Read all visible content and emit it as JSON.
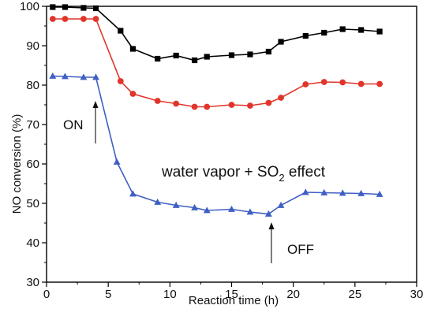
{
  "chart_data": {
    "type": "line",
    "title": "",
    "xlabel": "Reaction time (h)",
    "ylabel": "NO conversion (%)",
    "xlim": [
      0,
      30
    ],
    "ylim": [
      30,
      100
    ],
    "xticks": [
      0,
      5,
      10,
      15,
      20,
      25,
      30
    ],
    "yticks": [
      30,
      40,
      50,
      60,
      70,
      80,
      90,
      100
    ],
    "grid": false,
    "legend": "none",
    "series": [
      {
        "color": "#000000",
        "marker": "square",
        "x": [
          0.5,
          1.5,
          3,
          4,
          6,
          7,
          9,
          10.5,
          12,
          13,
          15,
          16.5,
          18,
          19,
          21,
          22.5,
          24,
          25.5,
          27
        ],
        "y": [
          99.8,
          99.8,
          99.6,
          99.5,
          93.8,
          89.2,
          86.7,
          87.5,
          86.3,
          87.2,
          87.6,
          87.8,
          88.5,
          91.0,
          92.5,
          93.3,
          94.2,
          94.0,
          93.6
        ]
      },
      {
        "color": "#e0352b",
        "marker": "circle",
        "x": [
          0.5,
          1.5,
          3,
          4,
          6,
          7,
          9,
          10.5,
          12,
          13,
          15,
          16.5,
          18,
          19,
          21,
          22.5,
          24,
          25.5,
          27
        ],
        "y": [
          96.8,
          96.8,
          96.8,
          96.8,
          81.0,
          77.8,
          76.0,
          75.3,
          74.5,
          74.5,
          75.0,
          74.8,
          75.5,
          76.8,
          80.2,
          80.8,
          80.7,
          80.3,
          80.3
        ]
      },
      {
        "color": "#3f5fc4",
        "marker": "triangle",
        "x": [
          0.5,
          1.5,
          3,
          4,
          5.7,
          7,
          9,
          10.5,
          12,
          13,
          15,
          16.5,
          18,
          19,
          21,
          22.5,
          24,
          25.5,
          27
        ],
        "y": [
          82.3,
          82.2,
          82.0,
          82.0,
          60.5,
          52.4,
          50.3,
          49.5,
          48.9,
          48.2,
          48.5,
          47.8,
          47.3,
          49.5,
          52.8,
          52.7,
          52.6,
          52.5,
          52.3
        ]
      }
    ],
    "annotations": {
      "on_label": "ON",
      "off_label": "OFF",
      "effect_prefix": "water vapor + SO",
      "effect_sub": "2",
      "effect_suffix": " effect"
    }
  }
}
